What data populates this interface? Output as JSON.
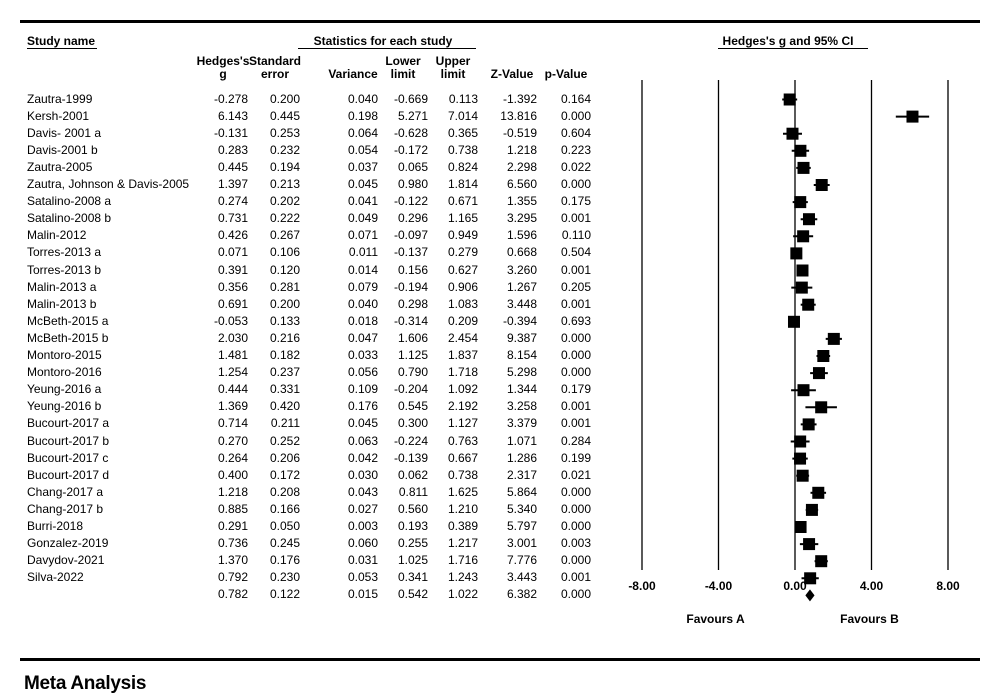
{
  "header": {
    "study_name": "Study name",
    "stats_group": "Statistics for each study",
    "plot_group": "Hedges's g and 95% CI",
    "columns": [
      [
        "Hedges's",
        "g"
      ],
      [
        "Standard",
        "error"
      ],
      [
        "",
        "Variance"
      ],
      [
        "Lower",
        "limit"
      ],
      [
        "Upper",
        "limit"
      ],
      [
        "",
        "Z-Value"
      ],
      [
        "",
        "p-Value"
      ]
    ]
  },
  "rows": [
    {
      "name": "Zautra-1999",
      "g": "-0.278",
      "se": "0.200",
      "var": "0.040",
      "lo": "-0.669",
      "hi": "0.113",
      "z": "-1.392",
      "p": "0.164"
    },
    {
      "name": "Kersh-2001",
      "g": "6.143",
      "se": "0.445",
      "var": "0.198",
      "lo": "5.271",
      "hi": "7.014",
      "z": "13.816",
      "p": "0.000"
    },
    {
      "name": "Davis- 2001 a",
      "g": "-0.131",
      "se": "0.253",
      "var": "0.064",
      "lo": "-0.628",
      "hi": "0.365",
      "z": "-0.519",
      "p": "0.604"
    },
    {
      "name": "Davis-2001 b",
      "g": "0.283",
      "se": "0.232",
      "var": "0.054",
      "lo": "-0.172",
      "hi": "0.738",
      "z": "1.218",
      "p": "0.223"
    },
    {
      "name": "Zautra-2005",
      "g": "0.445",
      "se": "0.194",
      "var": "0.037",
      "lo": "0.065",
      "hi": "0.824",
      "z": "2.298",
      "p": "0.022"
    },
    {
      "name": "Zautra, Johnson & Davis-2005",
      "g": "1.397",
      "se": "0.213",
      "var": "0.045",
      "lo": "0.980",
      "hi": "1.814",
      "z": "6.560",
      "p": "0.000"
    },
    {
      "name": "Satalino-2008 a",
      "g": "0.274",
      "se": "0.202",
      "var": "0.041",
      "lo": "-0.122",
      "hi": "0.671",
      "z": "1.355",
      "p": "0.175"
    },
    {
      "name": "Satalino-2008 b",
      "g": "0.731",
      "se": "0.222",
      "var": "0.049",
      "lo": "0.296",
      "hi": "1.165",
      "z": "3.295",
      "p": "0.001"
    },
    {
      "name": "Malin-2012",
      "g": "0.426",
      "se": "0.267",
      "var": "0.071",
      "lo": "-0.097",
      "hi": "0.949",
      "z": "1.596",
      "p": "0.110"
    },
    {
      "name": "Torres-2013 a",
      "g": "0.071",
      "se": "0.106",
      "var": "0.011",
      "lo": "-0.137",
      "hi": "0.279",
      "z": "0.668",
      "p": "0.504"
    },
    {
      "name": "Torres-2013 b",
      "g": "0.391",
      "se": "0.120",
      "var": "0.014",
      "lo": "0.156",
      "hi": "0.627",
      "z": "3.260",
      "p": "0.001"
    },
    {
      "name": "Malin-2013 a",
      "g": "0.356",
      "se": "0.281",
      "var": "0.079",
      "lo": "-0.194",
      "hi": "0.906",
      "z": "1.267",
      "p": "0.205"
    },
    {
      "name": "Malin-2013 b",
      "g": "0.691",
      "se": "0.200",
      "var": "0.040",
      "lo": "0.298",
      "hi": "1.083",
      "z": "3.448",
      "p": "0.001"
    },
    {
      "name": "McBeth-2015 a",
      "g": "-0.053",
      "se": "0.133",
      "var": "0.018",
      "lo": "-0.314",
      "hi": "0.209",
      "z": "-0.394",
      "p": "0.693"
    },
    {
      "name": "McBeth-2015 b",
      "g": "2.030",
      "se": "0.216",
      "var": "0.047",
      "lo": "1.606",
      "hi": "2.454",
      "z": "9.387",
      "p": "0.000"
    },
    {
      "name": "Montoro-2015",
      "g": "1.481",
      "se": "0.182",
      "var": "0.033",
      "lo": "1.125",
      "hi": "1.837",
      "z": "8.154",
      "p": "0.000"
    },
    {
      "name": "Montoro-2016",
      "g": "1.254",
      "se": "0.237",
      "var": "0.056",
      "lo": "0.790",
      "hi": "1.718",
      "z": "5.298",
      "p": "0.000"
    },
    {
      "name": "Yeung-2016 a",
      "g": "0.444",
      "se": "0.331",
      "var": "0.109",
      "lo": "-0.204",
      "hi": "1.092",
      "z": "1.344",
      "p": "0.179"
    },
    {
      "name": "Yeung-2016 b",
      "g": "1.369",
      "se": "0.420",
      "var": "0.176",
      "lo": "0.545",
      "hi": "2.192",
      "z": "3.258",
      "p": "0.001"
    },
    {
      "name": "Bucourt-2017 a",
      "g": "0.714",
      "se": "0.211",
      "var": "0.045",
      "lo": "0.300",
      "hi": "1.127",
      "z": "3.379",
      "p": "0.001"
    },
    {
      "name": "Bucourt-2017 b",
      "g": "0.270",
      "se": "0.252",
      "var": "0.063",
      "lo": "-0.224",
      "hi": "0.763",
      "z": "1.071",
      "p": "0.284"
    },
    {
      "name": "Bucourt-2017 c",
      "g": "0.264",
      "se": "0.206",
      "var": "0.042",
      "lo": "-0.139",
      "hi": "0.667",
      "z": "1.286",
      "p": "0.199"
    },
    {
      "name": "Bucourt-2017 d",
      "g": "0.400",
      "se": "0.172",
      "var": "0.030",
      "lo": "0.062",
      "hi": "0.738",
      "z": "2.317",
      "p": "0.021"
    },
    {
      "name": "Chang-2017 a",
      "g": "1.218",
      "se": "0.208",
      "var": "0.043",
      "lo": "0.811",
      "hi": "1.625",
      "z": "5.864",
      "p": "0.000"
    },
    {
      "name": "Chang-2017 b",
      "g": "0.885",
      "se": "0.166",
      "var": "0.027",
      "lo": "0.560",
      "hi": "1.210",
      "z": "5.340",
      "p": "0.000"
    },
    {
      "name": "Burri-2018",
      "g": "0.291",
      "se": "0.050",
      "var": "0.003",
      "lo": "0.193",
      "hi": "0.389",
      "z": "5.797",
      "p": "0.000"
    },
    {
      "name": "Gonzalez-2019",
      "g": "0.736",
      "se": "0.245",
      "var": "0.060",
      "lo": "0.255",
      "hi": "1.217",
      "z": "3.001",
      "p": "0.003"
    },
    {
      "name": "Davydov-2021",
      "g": "1.370",
      "se": "0.176",
      "var": "0.031",
      "lo": "1.025",
      "hi": "1.716",
      "z": "7.776",
      "p": "0.000"
    },
    {
      "name": "Silva-2022",
      "g": "0.792",
      "se": "0.230",
      "var": "0.053",
      "lo": "0.341",
      "hi": "1.243",
      "z": "3.443",
      "p": "0.001"
    },
    {
      "name": "",
      "g": "0.782",
      "se": "0.122",
      "var": "0.015",
      "lo": "0.542",
      "hi": "1.022",
      "z": "6.382",
      "p": "0.000"
    }
  ],
  "chart_data": {
    "type": "forest",
    "title": "Hedges's g and 95% CI",
    "xlim": [
      -8,
      8
    ],
    "ticks": [
      -8,
      -4,
      0,
      4,
      8
    ],
    "tick_labels": [
      "-8.00",
      "-4.00",
      "0.00",
      "4.00",
      "8.00"
    ],
    "reference_lines": [
      -8,
      -4,
      0,
      4,
      8
    ],
    "left_label": "Favours A",
    "right_label": "Favours B",
    "series": [
      {
        "values": [
          -0.278,
          6.143,
          -0.131,
          0.283,
          0.445,
          1.397,
          0.274,
          0.731,
          0.426,
          0.071,
          0.391,
          0.356,
          0.691,
          -0.053,
          2.03,
          1.481,
          1.254,
          0.444,
          1.369,
          0.714,
          0.27,
          0.264,
          0.4,
          1.218,
          0.885,
          0.291,
          0.736,
          1.37,
          0.792
        ],
        "lower": [
          -0.669,
          5.271,
          -0.628,
          -0.172,
          0.065,
          0.98,
          -0.122,
          0.296,
          -0.097,
          -0.137,
          0.156,
          -0.194,
          0.298,
          -0.314,
          1.606,
          1.125,
          0.79,
          -0.204,
          0.545,
          0.3,
          -0.224,
          -0.139,
          0.062,
          0.811,
          0.56,
          0.193,
          0.255,
          1.025,
          0.341
        ],
        "upper": [
          0.113,
          7.014,
          0.365,
          0.738,
          0.824,
          1.814,
          0.671,
          1.165,
          0.949,
          0.279,
          0.627,
          0.906,
          1.083,
          0.209,
          2.454,
          1.837,
          1.718,
          1.092,
          2.192,
          1.127,
          0.763,
          0.667,
          0.738,
          1.625,
          1.21,
          0.389,
          1.217,
          1.716,
          1.243
        ]
      }
    ],
    "summary": {
      "value": 0.782,
      "lower": 0.542,
      "upper": 1.022
    }
  },
  "footer": {
    "title": "Meta Analysis"
  }
}
